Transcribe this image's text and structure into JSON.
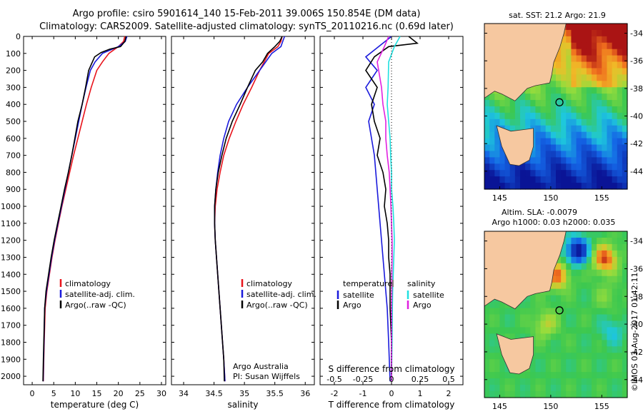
{
  "header": {
    "line1": "Argo profile: csiro 5901614_140 15-Feb-2011 39.006S 150.854E (DM data)",
    "line2": "Climatology: CARS2009. Satellite-adjusted climatology: synTS_20110216.nc (0.69d later)"
  },
  "credit": "©IMOS 03-Aug-2017 01:42:11",
  "colors": {
    "climatology": "#e8141c",
    "satellite": "#1a1adc",
    "argo": "#000000",
    "salinity_sat": "#20e0e0",
    "salinity_argo": "#e020e0",
    "land": "#f6c8a0"
  },
  "chart_data": [
    {
      "type": "line",
      "id": "temperature",
      "xlabel": "temperature (deg C)",
      "xlim": [
        -2,
        31
      ],
      "xticks": [
        0,
        5,
        10,
        15,
        20,
        25,
        30
      ],
      "ylim": [
        0,
        2050
      ],
      "yticks": [
        0,
        100,
        200,
        300,
        400,
        500,
        600,
        700,
        800,
        900,
        1000,
        1100,
        1200,
        1300,
        1400,
        1500,
        1600,
        1700,
        1800,
        1900,
        2000
      ],
      "legend": [
        "climatology",
        "satellite-adj. clim.",
        "Argo(..raw -QC)"
      ],
      "series": [
        {
          "name": "climatology",
          "color": "#e8141c",
          "x": [
            21.5,
            21.2,
            20,
            17.8,
            16.3,
            15,
            13.7,
            12.6,
            11.6,
            10.6,
            9.6,
            8.7,
            7.8,
            6.9,
            6.1,
            5.3,
            4.6,
            4,
            3.4,
            3,
            2.8,
            2.7,
            2.6
          ],
          "y": [
            0,
            30,
            60,
            100,
            150,
            200,
            300,
            400,
            500,
            600,
            700,
            800,
            900,
            1000,
            1100,
            1200,
            1300,
            1400,
            1500,
            1600,
            1800,
            1900,
            2030
          ]
        },
        {
          "name": "satellite-adj. clim.",
          "color": "#1a1adc",
          "x": [
            22,
            21.6,
            20,
            16.3,
            14.6,
            13.5,
            12.5,
            11.6,
            10.8,
            10,
            9.2,
            8.4,
            7.6,
            6.8,
            6,
            5.2,
            4.5,
            3.9,
            3.3,
            2.9,
            2.75,
            2.65,
            2.55
          ],
          "y": [
            0,
            30,
            60,
            100,
            150,
            200,
            300,
            400,
            500,
            600,
            700,
            800,
            900,
            1000,
            1100,
            1200,
            1300,
            1400,
            1500,
            1600,
            1800,
            1900,
            2030
          ]
        },
        {
          "name": "Argo(..raw -QC)",
          "color": "#000000",
          "x": [
            21.8,
            21.5,
            20.5,
            18,
            16,
            14.5,
            13.1,
            12.4,
            11.6,
            10.6,
            9.9,
            9.2,
            8.4,
            7.5,
            6.7,
            5.9,
            5.1,
            4.4,
            3.8,
            3.2,
            2.9,
            2.7,
            2.6,
            2.5
          ],
          "y": [
            0,
            30,
            60,
            75,
            95,
            120,
            200,
            300,
            400,
            500,
            600,
            700,
            800,
            900,
            1000,
            1100,
            1200,
            1300,
            1400,
            1500,
            1600,
            1800,
            1900,
            2030
          ]
        }
      ]
    },
    {
      "type": "line",
      "id": "salinity",
      "xlabel": "salinity",
      "xlim": [
        33.8,
        36.15
      ],
      "xticks": [
        34,
        34.5,
        35,
        35.5,
        36
      ],
      "ylim": [
        0,
        2050
      ],
      "legend": [
        "climatology",
        "satellite-adj. clim.",
        "Argo(..raw -QC)"
      ],
      "annotation": [
        "Argo Australia",
        "PI: Susan Wijffels"
      ],
      "series": [
        {
          "name": "climatology",
          "color": "#e8141c",
          "x": [
            35.62,
            35.6,
            35.55,
            35.4,
            35.25,
            35.12,
            34.98,
            34.86,
            34.75,
            34.66,
            34.6,
            34.55,
            34.52,
            34.51,
            34.52,
            34.54,
            34.56,
            34.58,
            34.6,
            34.62,
            34.64,
            34.66,
            34.68
          ],
          "y": [
            0,
            30,
            60,
            100,
            200,
            300,
            400,
            500,
            600,
            700,
            800,
            900,
            1000,
            1100,
            1200,
            1300,
            1400,
            1500,
            1600,
            1700,
            1800,
            1900,
            2030
          ]
        },
        {
          "name": "satellite-adj. clim.",
          "color": "#1a1adc",
          "x": [
            35.66,
            35.63,
            35.6,
            35.45,
            35.25,
            35.05,
            34.87,
            34.74,
            34.66,
            34.6,
            34.56,
            34.53,
            34.51,
            34.51,
            34.52,
            34.54,
            34.56,
            34.58,
            34.6,
            34.62,
            34.64,
            34.66,
            34.68
          ],
          "y": [
            0,
            30,
            60,
            100,
            200,
            300,
            400,
            500,
            600,
            700,
            800,
            900,
            1000,
            1100,
            1200,
            1300,
            1400,
            1500,
            1600,
            1700,
            1800,
            1900,
            2030
          ]
        },
        {
          "name": "Argo(..raw -QC)",
          "color": "#000000",
          "x": [
            35.62,
            35.58,
            35.5,
            35.38,
            35.3,
            35.18,
            35.05,
            34.93,
            34.8,
            34.7,
            34.63,
            34.57,
            34.53,
            34.51,
            34.51,
            34.52,
            34.54,
            34.56,
            34.58,
            34.6,
            34.62,
            34.64,
            34.66,
            34.67
          ],
          "y": [
            0,
            30,
            60,
            100,
            150,
            200,
            300,
            400,
            500,
            600,
            700,
            800,
            900,
            1000,
            1100,
            1200,
            1300,
            1400,
            1500,
            1600,
            1700,
            1800,
            1900,
            2030
          ]
        }
      ]
    },
    {
      "type": "line",
      "id": "difference",
      "xlabel": "T difference from climatology",
      "xlabel2": "S difference from climatology",
      "xlim": [
        -2.5,
        2.5
      ],
      "xticks": [
        -2,
        -1,
        0,
        1,
        2
      ],
      "xticks2": [
        -0.5,
        -0.25,
        0,
        0.25,
        0.5
      ],
      "ylim": [
        0,
        2050
      ],
      "legend_temperature_title": "temperature",
      "legend_salinity_title": "salinity",
      "legend_labels": [
        "satellite",
        "Argo",
        "satellite",
        "Argo"
      ],
      "series": [
        {
          "name": "temperature satellite",
          "color": "#1a1adc",
          "x": [
            0,
            -0.3,
            -0.9,
            -0.5,
            -0.9,
            -0.6,
            -0.8,
            -0.7,
            -0.6,
            -0.55,
            -0.5,
            -0.45,
            -0.4,
            -0.35,
            -0.3,
            -0.25,
            -0.2,
            -0.15,
            -0.1,
            -0.05
          ],
          "y": [
            0,
            40,
            120,
            200,
            300,
            400,
            500,
            600,
            700,
            800,
            900,
            1000,
            1100,
            1200,
            1300,
            1400,
            1500,
            1600,
            1800,
            2030
          ]
        },
        {
          "name": "temperature Argo",
          "color": "#000000",
          "x": [
            0.6,
            0.9,
            -0.1,
            -0.6,
            -0.9,
            -0.5,
            -0.7,
            -0.6,
            -0.4,
            -0.5,
            -0.3,
            -0.2,
            -0.25,
            -0.15,
            -0.1,
            -0.1,
            -0.05,
            -0.05,
            0,
            0
          ],
          "y": [
            0,
            40,
            60,
            120,
            200,
            300,
            400,
            500,
            600,
            700,
            800,
            900,
            1000,
            1100,
            1200,
            1300,
            1400,
            1600,
            1800,
            2030
          ]
        },
        {
          "name": "salinity satellite",
          "color": "#20e0e0",
          "x": [
            0.3,
            0.1,
            -0.1,
            -0.12,
            -0.15,
            -0.1,
            -0.05,
            -0.03,
            0,
            0,
            0.05,
            0.08,
            0.1,
            0.08,
            0.06,
            0.04,
            0.03,
            0.02,
            0.01,
            0
          ],
          "y": [
            0,
            60,
            150,
            300,
            400,
            500,
            600,
            700,
            800,
            900,
            1000,
            1100,
            1200,
            1300,
            1400,
            1500,
            1600,
            1800,
            1900,
            2030
          ]
        },
        {
          "name": "salinity Argo",
          "color": "#e020e0",
          "x": [
            -0.1,
            -0.25,
            -0.5,
            -0.35,
            -0.3,
            -0.2,
            -0.2,
            -0.15,
            -0.08,
            -0.05,
            -0.02,
            0,
            0.02,
            0.02,
            0.01,
            0.01,
            0,
            0,
            0,
            0
          ],
          "y": [
            0,
            60,
            150,
            300,
            400,
            500,
            600,
            700,
            800,
            900,
            1000,
            1100,
            1200,
            1300,
            1400,
            1500,
            1600,
            1800,
            1900,
            2030
          ]
        }
      ]
    },
    {
      "type": "heatmap",
      "id": "sst_map",
      "title": "sat. SST: 21.2 Argo: 21.9",
      "xticks": [
        145,
        150,
        155
      ],
      "yticks": [
        -34,
        -36,
        -38,
        -40,
        -42,
        -44
      ],
      "xlim": [
        143.5,
        157.5
      ],
      "ylim": [
        -45.3,
        -33.3
      ],
      "float_position": [
        150.854,
        -39.006
      ]
    },
    {
      "type": "heatmap",
      "id": "sla_map",
      "title_line1": "Altim. SLA: -0.0079",
      "title_line2": "Argo h1000: 0.03 h2000: 0.035",
      "xticks": [
        145,
        150,
        155
      ],
      "yticks": [
        -34,
        -36,
        -38,
        -40,
        -42,
        -44
      ],
      "xlim": [
        143.5,
        157.5
      ],
      "ylim": [
        -45.3,
        -33.3
      ],
      "float_position": [
        150.854,
        -39.006
      ]
    }
  ]
}
